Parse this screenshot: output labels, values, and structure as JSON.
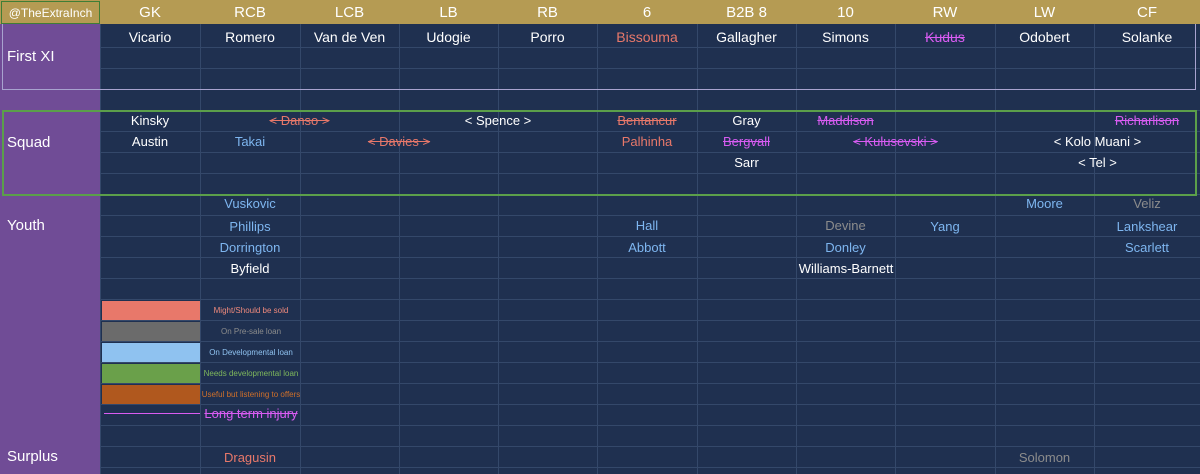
{
  "handle": "@TheExtraInch",
  "positions": [
    "GK",
    "RCB",
    "LCB",
    "LB",
    "RB",
    "6",
    "B2B 8",
    "10",
    "RW",
    "LW",
    "CF"
  ],
  "row_labels": {
    "first_xi": "First XI",
    "squad": "Squad",
    "youth": "Youth",
    "surplus": "Surplus"
  },
  "first_xi": [
    "Vicario",
    "Romero",
    "Van de Ven",
    "Udogie",
    "Porro",
    "Bissouma",
    "Gallagher",
    "Simons",
    "Kudus",
    "Odobert",
    "Solanke"
  ],
  "squad": {
    "kinsky": "Kinsky",
    "austin": "Austin",
    "danso": "< Danso >",
    "takai": "Takai",
    "davies": "< Davies >",
    "spence": "<  Spence  >",
    "bentancur": "Bentancur",
    "palhinha": "Palhinha",
    "gray": "Gray",
    "bergvall": "Bergvall",
    "sarr": "Sarr",
    "maddison": "Maddison",
    "kulusevski": "< Kulusevski >",
    "richarlison": "Richarlison",
    "kolo_muani": "< Kolo Muani >",
    "tel": "<  Tel  >"
  },
  "youth": {
    "vuskovic": "Vuskovic",
    "moore": "Moore",
    "veliz": "Veliz",
    "phillips": "Phillips",
    "hall": "Hall",
    "devine": "Devine",
    "yang": "Yang",
    "lankshear": "Lankshear",
    "dorrington": "Dorrington",
    "abbott": "Abbott",
    "donley": "Donley",
    "scarlett": "Scarlett",
    "byfield": "Byfield",
    "williams_barnett": "Williams-Barnett"
  },
  "legend": [
    {
      "label": "Might/Should be sold",
      "swatch": "#e8786a",
      "text_color": "#f08a7c"
    },
    {
      "label": "On Pre-sale loan",
      "swatch": "#6b6b6b",
      "text_color": "#8c8c8c"
    },
    {
      "label": "On Developmental loan",
      "swatch": "#8fc2f0",
      "text_color": "#8fc2f0"
    },
    {
      "label": "Needs developmental loan",
      "swatch": "#6aa04a",
      "text_color": "#7fb85c"
    },
    {
      "label": "Useful but listening to offers",
      "swatch": "#b0581e",
      "text_color": "#d0702a"
    }
  ],
  "injury_legend": "Long term injury",
  "surplus": {
    "dragusin": "Dragusin",
    "solomon": "Solomon"
  },
  "colors": {
    "background": "#1f3050",
    "header": "#b59b53",
    "left_column": "#704c96",
    "sell": "#e8786a",
    "pre_sale_loan": "#8c8c8c",
    "developmental_loan": "#7eb6f0",
    "injury": "#d85cf2",
    "squad_border": "#5b9f4a",
    "first_xi_border": "#a8a3cf"
  }
}
